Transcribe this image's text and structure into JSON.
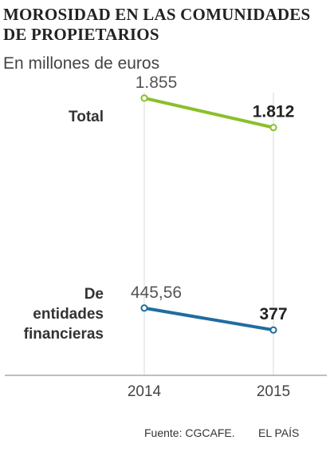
{
  "title": "MOROSIDAD EN LAS COMUNIDADES DE PROPIETARIOS",
  "subtitle": "En millones de euros",
  "source": "Fuente: CGCAFE.",
  "brand": "EL PAÍS",
  "chart_data": {
    "type": "line",
    "x": [
      "2014",
      "2015"
    ],
    "series": [
      {
        "name": "Total",
        "values": [
          1855,
          1812
        ],
        "value_labels": [
          "1.855",
          "1.812"
        ],
        "color": "#8cbf2a"
      },
      {
        "name": "De entidades financieras",
        "name_lines": [
          "De",
          "entidades",
          "financieras"
        ],
        "values": [
          445.56,
          377
        ],
        "value_labels": [
          "445,56",
          "377"
        ],
        "color": "#1f6da0"
      }
    ],
    "grid": true,
    "legend": "left of lines"
  }
}
